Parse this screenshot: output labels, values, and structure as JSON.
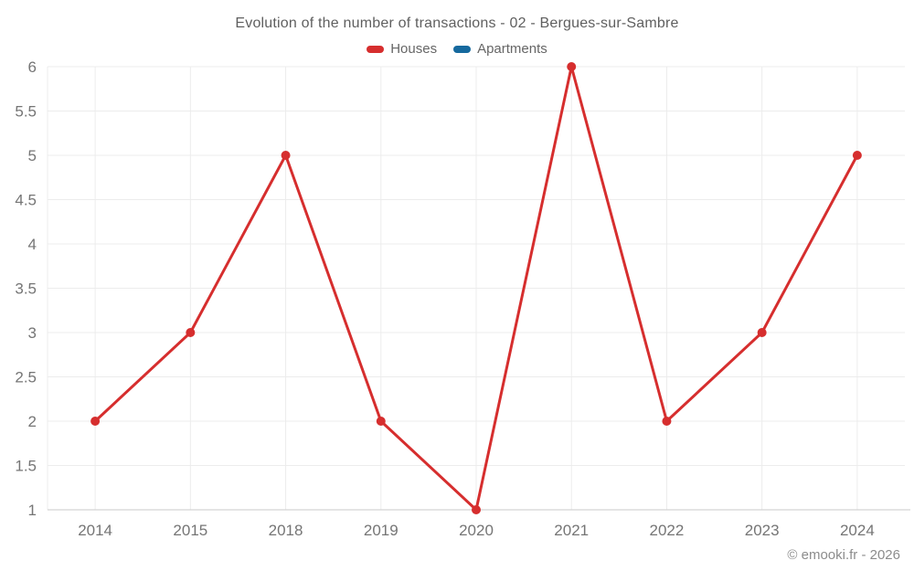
{
  "header": {
    "title": "Evolution of the number of transactions - 02 - Bergues-sur-Sambre"
  },
  "legend": {
    "items": [
      {
        "label": "Houses",
        "color": "#d62e2e"
      },
      {
        "label": "Apartments",
        "color": "#16699e"
      }
    ]
  },
  "footer": {
    "watermark": "© emooki.fr - 2026"
  },
  "chart_data": {
    "type": "line",
    "title": "Evolution of the number of transactions - 02 - Bergues-sur-Sambre",
    "categories": [
      "2014",
      "2015",
      "2018",
      "2019",
      "2020",
      "2021",
      "2022",
      "2023",
      "2024"
    ],
    "series": [
      {
        "name": "Houses",
        "color": "#d62e2e",
        "values": [
          2,
          3,
          5,
          2,
          1,
          6,
          2,
          3,
          5
        ]
      },
      {
        "name": "Apartments",
        "color": "#16699e",
        "values": []
      }
    ],
    "xlabel": "",
    "ylabel": "",
    "ylim": [
      1,
      6
    ],
    "yticks": [
      1,
      1.5,
      2,
      2.5,
      3,
      3.5,
      4,
      4.5,
      5,
      5.5,
      6
    ],
    "grid": true,
    "legend_position": "top",
    "marker": "circle"
  },
  "style_colors": {
    "grid": "#ececec",
    "axis": "#d4d4d4",
    "tick_label": "#757575",
    "title": "#5f5f5f",
    "watermark": "#8c8c8c"
  }
}
